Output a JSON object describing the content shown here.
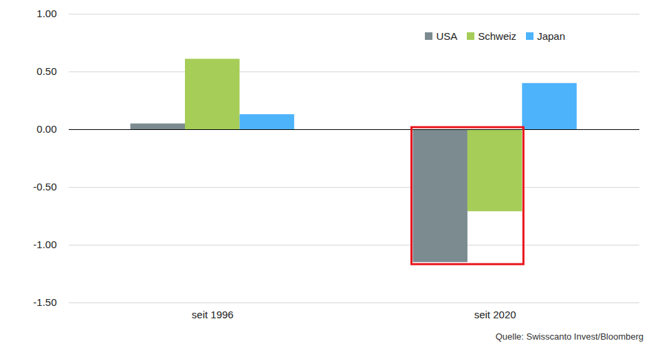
{
  "chart_data": {
    "type": "bar",
    "categories": [
      "seit 1996",
      "seit 2020"
    ],
    "series": [
      {
        "name": "USA",
        "color": "#7b8b90",
        "values": [
          0.05,
          -1.15
        ]
      },
      {
        "name": "Schweiz",
        "color": "#a6cd57",
        "values": [
          0.61,
          -0.71
        ]
      },
      {
        "name": "Japan",
        "color": "#4db3fb",
        "values": [
          0.13,
          0.4
        ]
      }
    ],
    "ylim": [
      -1.5,
      1.0
    ],
    "yticks": [
      {
        "value": -1.5,
        "label": "-1.50"
      },
      {
        "value": -1.0,
        "label": "-1.00"
      },
      {
        "value": -0.5,
        "label": "-0.50"
      },
      {
        "value": 0,
        "label": "0.00"
      },
      {
        "value": 0.5,
        "label": "0.50"
      },
      {
        "value": 1.0,
        "label": "1.00"
      }
    ],
    "grid": true,
    "legend": "top-right",
    "caption": "Quelle: Swisscanto Invest/Bloomberg"
  }
}
